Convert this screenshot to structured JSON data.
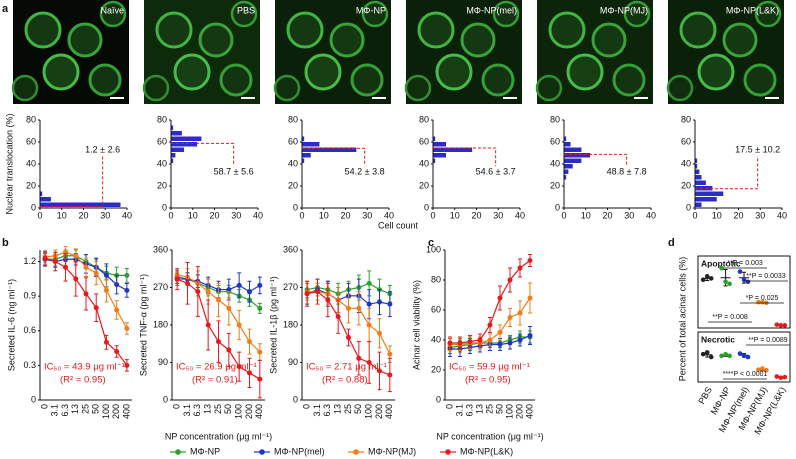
{
  "panel_labels": [
    "a",
    "b",
    "c",
    "d"
  ],
  "image_labels": [
    "Naïve",
    "PBS",
    "MΦ-NP",
    "MΦ-NP(mel)",
    "MΦ-NP(MJ)",
    "MΦ-NP(L&K)"
  ],
  "shared_labels": {
    "cell_count": "Cell count"
  },
  "chart_data": [
    {
      "type": "histogram",
      "orientation": "horizontal",
      "color": "#2b2bc8",
      "ylabel": "Nuclear translocation (%)",
      "bins": [
        0,
        5,
        10,
        15,
        20,
        25,
        30,
        35,
        40,
        45,
        50,
        55,
        60,
        65,
        70,
        75,
        80
      ],
      "counts": [
        37,
        5,
        1,
        0,
        0,
        0,
        0,
        0,
        0,
        0,
        0,
        0,
        0,
        0,
        0,
        0
      ],
      "ylim": [
        0,
        80
      ],
      "yticks": [
        0,
        20,
        40,
        60,
        80
      ],
      "xlim": [
        0,
        40
      ],
      "xticks": [
        0,
        10,
        20,
        30,
        40
      ],
      "mean": 1.2,
      "mean_label": "1.2 ± 2.6"
    },
    {
      "type": "histogram",
      "orientation": "horizontal",
      "color": "#2b2bc8",
      "bins": [
        0,
        5,
        10,
        15,
        20,
        25,
        30,
        35,
        40,
        45,
        50,
        55,
        60,
        65,
        70,
        75,
        80
      ],
      "counts": [
        0,
        0,
        0,
        0,
        0,
        0,
        0,
        0,
        1,
        2,
        6,
        12,
        14,
        5,
        1,
        0
      ],
      "ylim": [
        0,
        80
      ],
      "yticks": [
        0,
        20,
        40,
        60,
        80
      ],
      "xlim": [
        0,
        40
      ],
      "xticks": [
        0,
        10,
        20,
        30,
        40
      ],
      "mean": 58.7,
      "mean_label": "58.7 ± 5.6"
    },
    {
      "type": "histogram",
      "orientation": "horizontal",
      "color": "#2b2bc8",
      "bins": [
        0,
        5,
        10,
        15,
        20,
        25,
        30,
        35,
        40,
        45,
        50,
        55,
        60,
        65,
        70,
        75,
        80
      ],
      "counts": [
        0,
        0,
        0,
        0,
        0,
        0,
        0,
        0,
        1,
        4,
        25,
        8,
        1,
        0,
        0,
        0
      ],
      "ylim": [
        0,
        80
      ],
      "yticks": [
        0,
        20,
        40,
        60,
        80
      ],
      "xlim": [
        0,
        40
      ],
      "xticks": [
        0,
        10,
        20,
        30,
        40
      ],
      "mean": 54.2,
      "mean_label": "54.2 ± 3.8"
    },
    {
      "type": "histogram",
      "orientation": "horizontal",
      "color": "#2b2bc8",
      "bins": [
        0,
        5,
        10,
        15,
        20,
        25,
        30,
        35,
        40,
        45,
        50,
        55,
        60,
        65,
        70,
        75,
        80
      ],
      "counts": [
        0,
        0,
        0,
        0,
        0,
        0,
        0,
        0,
        1,
        6,
        18,
        6,
        1,
        0,
        0,
        0
      ],
      "ylim": [
        0,
        80
      ],
      "yticks": [
        0,
        20,
        40,
        60,
        80
      ],
      "xlim": [
        0,
        40
      ],
      "xticks": [
        0,
        10,
        20,
        30,
        40
      ],
      "mean": 54.6,
      "mean_label": "54.6 ± 3.7"
    },
    {
      "type": "histogram",
      "orientation": "horizontal",
      "color": "#2b2bc8",
      "bins": [
        0,
        5,
        10,
        15,
        20,
        25,
        30,
        35,
        40,
        45,
        50,
        55,
        60,
        65,
        70,
        75,
        80
      ],
      "counts": [
        0,
        0,
        0,
        0,
        0,
        1,
        2,
        4,
        8,
        12,
        8,
        3,
        1,
        0,
        0,
        0
      ],
      "ylim": [
        0,
        80
      ],
      "yticks": [
        0,
        20,
        40,
        60,
        80
      ],
      "xlim": [
        0,
        40
      ],
      "xticks": [
        0,
        10,
        20,
        30,
        40
      ],
      "mean": 48.8,
      "mean_label": "48.8 ± 7.8"
    },
    {
      "type": "histogram",
      "orientation": "horizontal",
      "color": "#2b2bc8",
      "bins": [
        0,
        5,
        10,
        15,
        20,
        25,
        30,
        35,
        40,
        45,
        50,
        55,
        60,
        65,
        70,
        75,
        80
      ],
      "counts": [
        3,
        10,
        13,
        8,
        5,
        3,
        2,
        1,
        1,
        0,
        0,
        0,
        0,
        0,
        0,
        0
      ],
      "ylim": [
        0,
        80
      ],
      "yticks": [
        0,
        20,
        40,
        60,
        80
      ],
      "xlim": [
        0,
        40
      ],
      "xticks": [
        0,
        10,
        20,
        30,
        40
      ],
      "mean": 17.5,
      "mean_label": "17.5 ± 10.2"
    },
    {
      "type": "line",
      "ylabel": "Secreted IL-6 (ng ml⁻¹)",
      "categories": [
        "0",
        "3.1",
        "6.3",
        "13",
        "25",
        "50",
        "100",
        "200",
        "400"
      ],
      "ylim": [
        0,
        1.3
      ],
      "yticks": [
        0,
        0.3,
        0.6,
        0.9,
        1.2
      ],
      "annotations": [
        "IC₅₀ = 43.9 μg ml⁻¹",
        "(R² = 0.95)"
      ],
      "series": [
        {
          "name": "MΦ-NP",
          "color": "#2ca02c",
          "values": [
            1.22,
            1.22,
            1.25,
            1.25,
            1.2,
            1.15,
            1.1,
            1.08,
            1.08
          ],
          "errors": [
            0.05,
            0.06,
            0.05,
            0.05,
            0.06,
            0.07,
            0.06,
            0.07,
            0.06
          ]
        },
        {
          "name": "MΦ-NP(mel)",
          "color": "#1f35c8",
          "values": [
            1.22,
            1.2,
            1.22,
            1.22,
            1.18,
            1.15,
            1.08,
            1.0,
            0.95
          ],
          "errors": [
            0.06,
            0.05,
            0.06,
            0.05,
            0.08,
            0.08,
            0.1,
            0.08,
            0.06
          ]
        },
        {
          "name": "MΦ-NP(MJ)",
          "color": "#f07d1a",
          "values": [
            1.24,
            1.25,
            1.28,
            1.25,
            1.15,
            1.1,
            0.95,
            0.78,
            0.62
          ],
          "errors": [
            0.05,
            0.05,
            0.05,
            0.06,
            0.08,
            0.1,
            0.1,
            0.08,
            0.05
          ]
        },
        {
          "name": "MΦ-NP(L&K)",
          "color": "#e41a1c",
          "values": [
            1.23,
            1.2,
            1.15,
            1.05,
            0.92,
            0.8,
            0.5,
            0.42,
            0.3
          ],
          "errors": [
            0.06,
            0.08,
            0.12,
            0.15,
            0.14,
            0.12,
            0.06,
            0.05,
            0.05
          ]
        }
      ]
    },
    {
      "type": "line",
      "ylabel": "Secreted TNF-α (pg ml⁻¹)",
      "xlabel": "NP concentration (μg ml⁻¹)",
      "categories": [
        "0",
        "3.1",
        "6.3",
        "13",
        "25",
        "50",
        "100",
        "200",
        "400"
      ],
      "ylim": [
        0,
        360
      ],
      "yticks": [
        0,
        90,
        180,
        270,
        360
      ],
      "annotations": [
        "IC₅₀ = 26.9 μg ml⁻¹",
        "(R² = 0.91)"
      ],
      "series": [
        {
          "name": "MΦ-NP",
          "color": "#2ca02c",
          "values": [
            290,
            290,
            280,
            270,
            260,
            260,
            250,
            240,
            220
          ],
          "errors": [
            15,
            15,
            20,
            20,
            15,
            15,
            15,
            15,
            12
          ]
        },
        {
          "name": "MΦ-NP(mel)",
          "color": "#1f35c8",
          "values": [
            295,
            290,
            285,
            275,
            265,
            265,
            275,
            260,
            275
          ],
          "errors": [
            15,
            15,
            15,
            20,
            20,
            25,
            30,
            25,
            20
          ]
        },
        {
          "name": "MΦ-NP(MJ)",
          "color": "#f07d1a",
          "values": [
            300,
            295,
            280,
            260,
            240,
            220,
            180,
            140,
            115
          ],
          "errors": [
            15,
            20,
            30,
            30,
            40,
            40,
            35,
            30,
            20
          ]
        },
        {
          "name": "MΦ-NP(L&K)",
          "color": "#e41a1c",
          "values": [
            290,
            280,
            260,
            180,
            140,
            120,
            80,
            65,
            50
          ],
          "errors": [
            25,
            50,
            60,
            60,
            50,
            40,
            35,
            35,
            45
          ]
        }
      ]
    },
    {
      "type": "line",
      "ylabel": "Secreted IL-1β (pg ml⁻¹)",
      "categories": [
        "0",
        "3.1",
        "6.3",
        "13",
        "25",
        "50",
        "100",
        "200",
        "400"
      ],
      "ylim": [
        0,
        360
      ],
      "yticks": [
        0,
        90,
        180,
        270,
        360
      ],
      "annotations": [
        "IC₅₀ = 2.71 μg ml⁻¹",
        "(R² = 0.88)"
      ],
      "series": [
        {
          "name": "MΦ-NP",
          "color": "#2ca02c",
          "values": [
            265,
            270,
            265,
            255,
            265,
            270,
            280,
            265,
            255
          ],
          "errors": [
            20,
            20,
            20,
            25,
            20,
            30,
            30,
            25,
            20
          ]
        },
        {
          "name": "MΦ-NP(mel)",
          "color": "#1f35c8",
          "values": [
            255,
            265,
            255,
            240,
            250,
            250,
            230,
            235,
            230
          ],
          "errors": [
            25,
            25,
            30,
            30,
            30,
            40,
            35,
            30,
            30
          ]
        },
        {
          "name": "MΦ-NP(MJ)",
          "color": "#f07d1a",
          "values": [
            260,
            260,
            255,
            240,
            220,
            220,
            180,
            160,
            110
          ],
          "errors": [
            20,
            20,
            25,
            30,
            35,
            40,
            40,
            35,
            20
          ]
        },
        {
          "name": "MΦ-NP(L&K)",
          "color": "#e41a1c",
          "values": [
            255,
            260,
            240,
            200,
            150,
            100,
            90,
            70,
            60
          ],
          "errors": [
            30,
            30,
            40,
            40,
            20,
            40,
            50,
            45,
            40
          ]
        }
      ]
    },
    {
      "type": "line",
      "ylabel": "Acinar cell viability (%)",
      "xlabel": "NP concentration (μg ml⁻¹)",
      "categories": [
        "0",
        "3.1",
        "6.3",
        "13",
        "25",
        "50",
        "100",
        "200",
        "400"
      ],
      "ylim": [
        0,
        100
      ],
      "yticks": [
        0,
        20,
        40,
        60,
        80,
        100
      ],
      "annotations": [
        "IC₅₀ = 59.9 μg ml⁻¹",
        "(R² = 0.95)"
      ],
      "series": [
        {
          "name": "MΦ-NP",
          "color": "#2ca02c",
          "values": [
            35,
            36,
            37,
            38,
            38,
            38,
            40,
            42,
            42
          ],
          "errors": [
            4,
            4,
            4,
            4,
            3,
            3,
            3,
            4,
            4
          ]
        },
        {
          "name": "MΦ-NP(mel)",
          "color": "#1f35c8",
          "values": [
            34,
            34,
            35,
            36,
            37,
            37,
            38,
            40,
            43
          ],
          "errors": [
            5,
            5,
            4,
            4,
            4,
            4,
            4,
            4,
            6
          ]
        },
        {
          "name": "MΦ-NP(MJ)",
          "color": "#f07d1a",
          "values": [
            37,
            37,
            38,
            38,
            40,
            45,
            55,
            58,
            68
          ],
          "errors": [
            4,
            4,
            4,
            4,
            4,
            5,
            6,
            8,
            10
          ]
        },
        {
          "name": "MΦ-NP(L&K)",
          "color": "#e41a1c",
          "values": [
            38,
            38,
            39,
            40,
            50,
            68,
            80,
            88,
            93
          ],
          "errors": [
            4,
            4,
            4,
            4,
            5,
            8,
            8,
            6,
            4
          ]
        }
      ]
    },
    {
      "type": "dot",
      "ylabel": "Percent of total acinar cells (%)",
      "categories": [
        "PBS",
        "MΦ-NP",
        "MΦ-NP(mel)",
        "MΦ-NP(MJ)",
        "MΦ-NP(L&K)"
      ],
      "colors": [
        "#222222",
        "#2ca02c",
        "#1f35c8",
        "#f07d1a",
        "#e41a1c"
      ],
      "panels": [
        {
          "title": "Apoptotic",
          "ylim": [
            0,
            100
          ],
          "points": [
            [
              68,
              73,
              70
            ],
            [
              85,
              65,
              62
            ],
            [
              80,
              68,
              65
            ],
            [
              35,
              35,
              34
            ],
            [
              2,
              1,
              1
            ]
          ],
          "means": [
            70,
            71,
            71,
            35,
            1
          ],
          "errors": [
            3,
            12,
            8,
            1,
            1
          ],
          "annotations": [
            "**P = 0.003",
            "**P = 0.0033",
            "*P = 0.025",
            "**P = 0.008"
          ]
        },
        {
          "title": "Necrotic",
          "ylim": [
            0,
            80
          ],
          "points": [
            [
              45,
              48,
              40
            ],
            [
              42,
              45,
              42
            ],
            [
              46,
              42,
              40
            ],
            [
              18,
              20,
              17
            ],
            [
              6,
              4,
              5
            ]
          ],
          "means": [
            44,
            43,
            43,
            18,
            5
          ],
          "errors": [
            4,
            2,
            3,
            2,
            1
          ],
          "annotations": [
            "**P = 0.0089",
            "****P < 0.0001"
          ]
        }
      ]
    }
  ]
}
